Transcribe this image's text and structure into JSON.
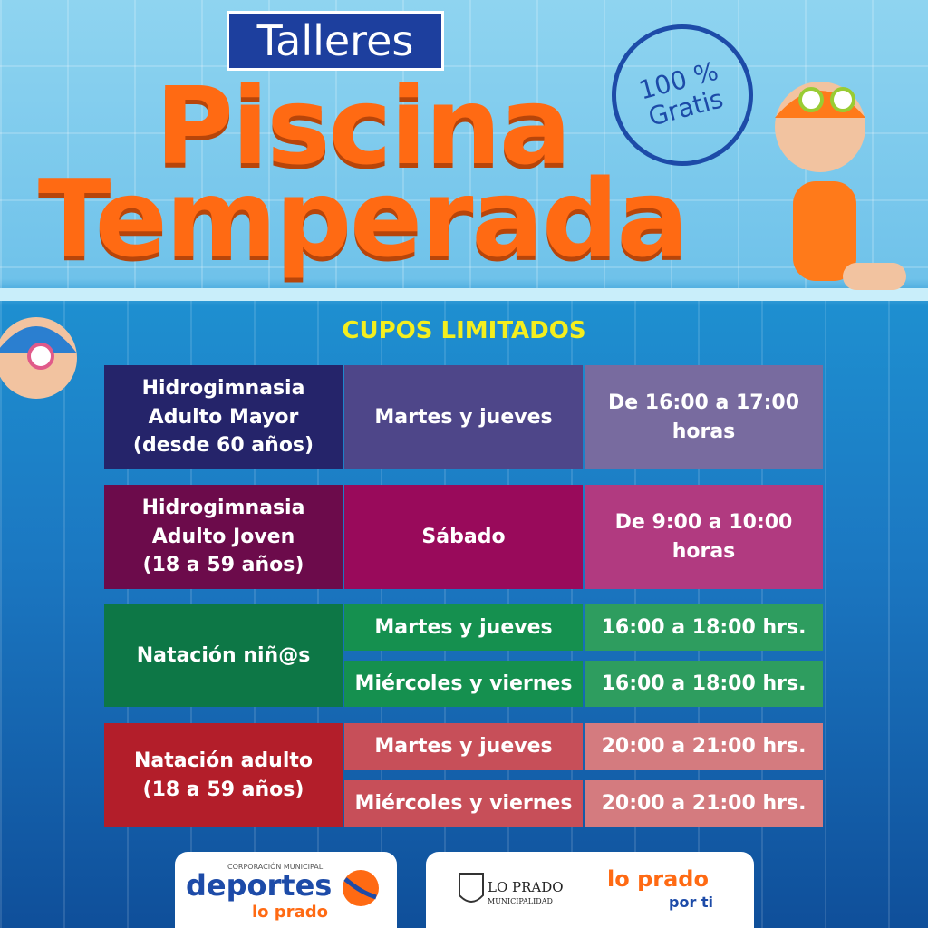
{
  "header": {
    "label": "Talleres",
    "title_lines": [
      "Piscina",
      "Temperada"
    ]
  },
  "stamp": {
    "lines": [
      "100 %",
      "Gratis"
    ]
  },
  "notice": "CUPOS LIMITADOS",
  "schedule": [
    {
      "activity": [
        "Hidrogimnasia",
        "Adulto Mayor",
        "(desde 60 años)"
      ],
      "sessions": [
        {
          "days": "Martes y jueves",
          "time": [
            "De 16:00 a 17:00",
            "horas"
          ]
        }
      ]
    },
    {
      "activity": [
        "Hidrogimnasia",
        "Adulto Joven",
        "(18 a 59 años)"
      ],
      "sessions": [
        {
          "days": "Sábado",
          "time": [
            "De 9:00 a 10:00",
            "horas"
          ]
        }
      ]
    },
    {
      "activity": [
        "Natación niñ@s"
      ],
      "sessions": [
        {
          "days": "Martes y jueves",
          "time": [
            "16:00 a 18:00 hrs."
          ]
        },
        {
          "days": "Miércoles y viernes",
          "time": [
            "16:00 a 18:00 hrs."
          ]
        }
      ]
    },
    {
      "activity": [
        "Natación adulto",
        "(18 a 59 años)"
      ],
      "sessions": [
        {
          "days": "Martes y jueves",
          "time": [
            "20:00 a 21:00 hrs."
          ]
        },
        {
          "days": "Miércoles y viernes",
          "time": [
            "20:00 a 21:00 hrs."
          ]
        }
      ]
    }
  ],
  "footer": {
    "corp": {
      "small": "CORPORACIÓN MUNICIPAL",
      "big": "deportes",
      "sub": "lo prado"
    },
    "muni": {
      "name": "LO PRADO",
      "sub": "MUNICIPALIDAD"
    },
    "brand": {
      "name": "lo prado",
      "sub": "por ti"
    }
  }
}
